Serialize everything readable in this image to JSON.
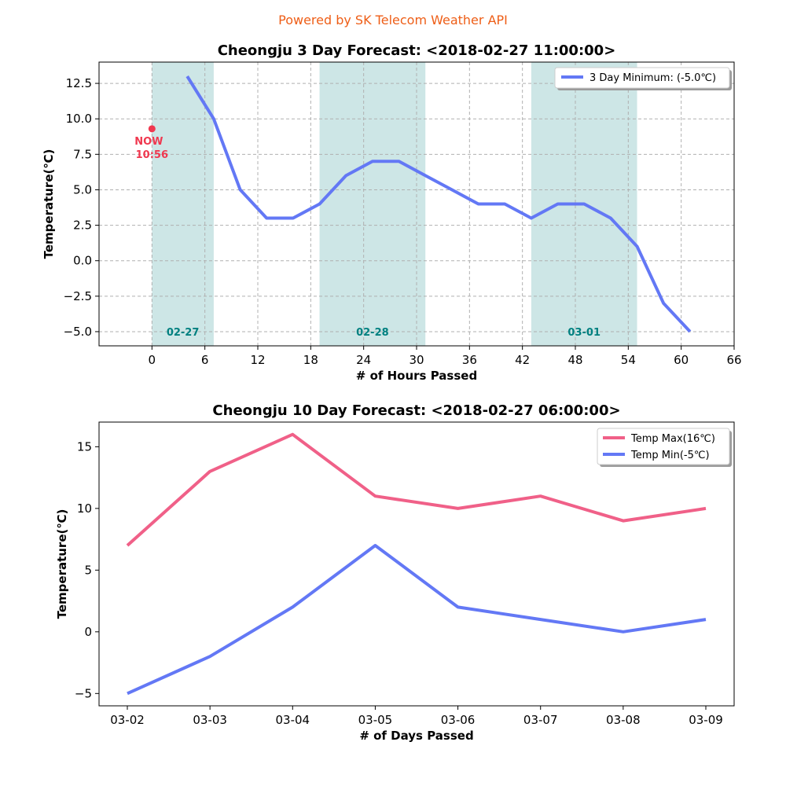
{
  "credit": "Powered by SK Telecom Weather API",
  "colors": {
    "credit": "#ee5e17",
    "min_line": "#6378f5",
    "max_line": "#f06088",
    "day_band": "#cde6e6",
    "day_label": "#008080",
    "now": "#f0384f"
  },
  "chart_data": [
    {
      "type": "line",
      "title": "Cheongju 3 Day Forecast: <2018-02-27 11:00:00>",
      "xlabel": "# of Hours Passed",
      "ylabel": "Temperature(℃)",
      "xlim": [
        -6,
        66
      ],
      "ylim": [
        -6,
        14
      ],
      "xticks": [
        0,
        6,
        12,
        18,
        24,
        30,
        36,
        42,
        48,
        54,
        60,
        66
      ],
      "yticks": [
        -5.0,
        -2.5,
        0.0,
        2.5,
        5.0,
        7.5,
        10.0,
        12.5
      ],
      "ytick_labels": [
        "−5.0",
        "−2.5",
        "0.0",
        "2.5",
        "5.0",
        "7.5",
        "10.0",
        "12.5"
      ],
      "grid": true,
      "legend": "top-right",
      "series": [
        {
          "name": "3 Day Minimum: (-5.0℃)",
          "x": [
            4,
            7,
            10,
            13,
            16,
            19,
            22,
            25,
            28,
            31,
            34,
            37,
            40,
            43,
            46,
            49,
            52,
            55,
            58,
            61
          ],
          "y": [
            13,
            10,
            5,
            3,
            3,
            4,
            6,
            7,
            7,
            6,
            5,
            4,
            4,
            3,
            4,
            4,
            3,
            1,
            -3,
            -5
          ]
        }
      ],
      "day_bands": [
        {
          "label": "02-27",
          "x0": 0,
          "x1": 7
        },
        {
          "label": "02-28",
          "x0": 19,
          "x1": 31
        },
        {
          "label": "03-01",
          "x0": 43,
          "x1": 55
        }
      ],
      "now_marker": {
        "x": 0,
        "y": 9.3,
        "label": "NOW",
        "time": "10:56"
      }
    },
    {
      "type": "line",
      "title": "Cheongju 10 Day Forecast: <2018-02-27 06:00:00>",
      "xlabel": "# of Days Passed",
      "ylabel": "Temperature(℃)",
      "categories": [
        "03-02",
        "03-03",
        "03-04",
        "03-05",
        "03-06",
        "03-07",
        "03-08",
        "03-09"
      ],
      "ylim": [
        -6,
        17
      ],
      "yticks": [
        -5,
        0,
        5,
        10,
        15
      ],
      "ytick_labels": [
        "−5",
        "0",
        "5",
        "10",
        "15"
      ],
      "grid": false,
      "legend": "top-right",
      "series": [
        {
          "name": "Temp Max(16℃)",
          "values": [
            7,
            13,
            16,
            11,
            10,
            11,
            9,
            10
          ]
        },
        {
          "name": "Temp Min(-5℃)",
          "values": [
            -5,
            -2,
            2,
            7,
            2,
            1,
            0,
            1
          ]
        }
      ]
    }
  ]
}
